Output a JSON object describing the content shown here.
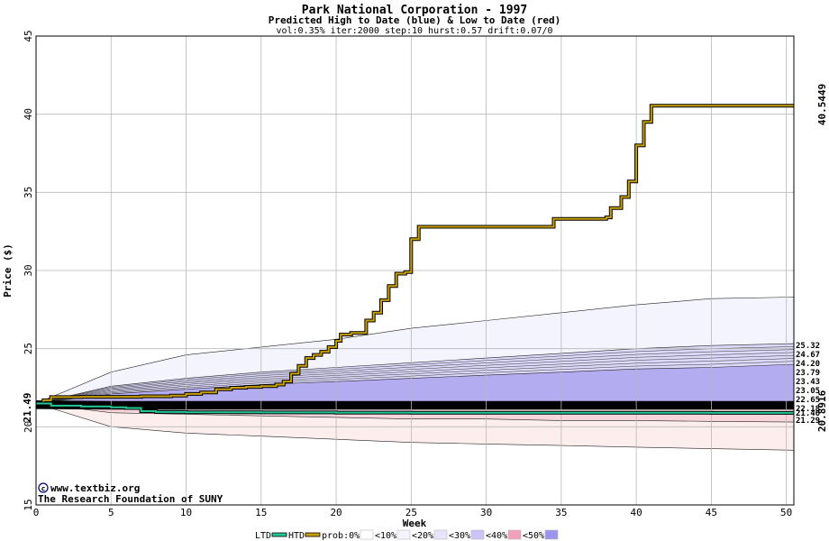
{
  "chart_data": {
    "type": "line",
    "title": "Park National Corporation - 1997",
    "subtitle": "Predicted High to Date (blue) &  Low to Date (red)",
    "params": "vol:0.35% iter:2000 step:10 hurst:0.57 drift:0.07/0",
    "xlabel": "Week",
    "ylabel": "Price ($)",
    "xlim": [
      0,
      50.5
    ],
    "ylim": [
      15,
      45
    ],
    "x_ticks": [
      0,
      5,
      10,
      15,
      20,
      25,
      30,
      35,
      40,
      45,
      50
    ],
    "y_ticks": [
      15,
      20,
      25,
      30,
      35,
      40,
      45
    ],
    "grid": true,
    "start_value": 21.49,
    "start_label": "21.49",
    "htd_end_label": "40.5449",
    "ltd_end_label": "20.8916",
    "series": [
      {
        "name": "HTD",
        "color": "#c8a000",
        "x": [
          0,
          0.5,
          1,
          3,
          5,
          7,
          9,
          10,
          11,
          12,
          13,
          14,
          15,
          16,
          16.5,
          17,
          17.5,
          18,
          18.5,
          19,
          19.5,
          20,
          20.3,
          20.6,
          21,
          21.6,
          22,
          22.5,
          23,
          23.5,
          24,
          24.6,
          25,
          25.5,
          30,
          34,
          34.5,
          38,
          38.3,
          39,
          39.5,
          40,
          40.5,
          41,
          50.5
        ],
        "values": [
          21.49,
          21.7,
          21.9,
          21.92,
          21.92,
          21.95,
          22.0,
          22.1,
          22.2,
          22.4,
          22.5,
          22.55,
          22.6,
          22.7,
          22.9,
          23.4,
          23.9,
          24.4,
          24.6,
          24.8,
          25.1,
          25.5,
          25.9,
          25.9,
          26.0,
          26.0,
          26.8,
          27.3,
          28.1,
          29.0,
          29.8,
          29.9,
          32.0,
          32.8,
          32.8,
          32.8,
          33.3,
          33.4,
          34.0,
          34.7,
          35.7,
          38.0,
          39.5,
          40.5449,
          40.5449
        ]
      },
      {
        "name": "LTD",
        "color": "#20c898",
        "x": [
          0,
          1,
          3,
          5,
          6,
          7,
          8,
          10,
          15,
          20,
          25,
          30,
          35,
          40,
          45,
          50.5
        ],
        "values": [
          21.49,
          21.35,
          21.3,
          21.25,
          21.2,
          21.0,
          20.95,
          20.93,
          20.92,
          20.91,
          20.9,
          20.9,
          20.9,
          20.895,
          20.892,
          20.8916
        ]
      }
    ],
    "probability_bands": {
      "x": [
        0,
        5,
        10,
        15,
        20,
        25,
        30,
        35,
        40,
        45,
        50.5
      ],
      "high_outer": [
        21.49,
        23.5,
        24.6,
        25.1,
        25.6,
        26.3,
        26.8,
        27.3,
        27.8,
        28.2,
        28.3
      ],
      "high_mid": [
        21.49,
        22.6,
        23.1,
        23.5,
        23.8,
        24.1,
        24.4,
        24.7,
        25.0,
        25.2,
        25.32
      ],
      "high_inner": [
        21.49,
        22.1,
        22.4,
        22.7,
        22.9,
        23.1,
        23.3,
        23.5,
        23.7,
        23.8,
        24.0
      ],
      "center": [
        21.49,
        21.45,
        21.45,
        21.45,
        21.45,
        21.45,
        21.45,
        21.45,
        21.45,
        21.45,
        21.45
      ],
      "low_inner": [
        21.49,
        20.9,
        20.8,
        20.7,
        20.6,
        20.5,
        20.5,
        20.4,
        20.4,
        20.35,
        20.3
      ],
      "low_outer": [
        21.49,
        20.0,
        19.6,
        19.4,
        19.2,
        19.0,
        18.9,
        18.8,
        18.7,
        18.6,
        18.5
      ]
    },
    "right_labels": [
      "25.32",
      "24.67",
      "24.20",
      "23.79",
      "23.43",
      "23.05",
      "22.65",
      "22.18",
      "21.46",
      "21.29"
    ],
    "legend": [
      {
        "label": "LTD",
        "color": "#20c898"
      },
      {
        "label": "HTD",
        "color": "#c8a000"
      },
      {
        "label": "prob:0%",
        "color": "#ffffff"
      },
      {
        "label": "<10%",
        "color": "#f4f4ff"
      },
      {
        "label": "<20%",
        "color": "#e8e4fc"
      },
      {
        "label": "<30%",
        "color": "#ccc4f4"
      },
      {
        "label": "<40%",
        "color": "#f0a0b8"
      },
      {
        "label": "<50%",
        "color": "#9c94ec"
      }
    ],
    "legend_placement": "bottom"
  },
  "credits": {
    "line1": "www.textbiz.org",
    "line2": "The Research Foundation of SUNY"
  }
}
